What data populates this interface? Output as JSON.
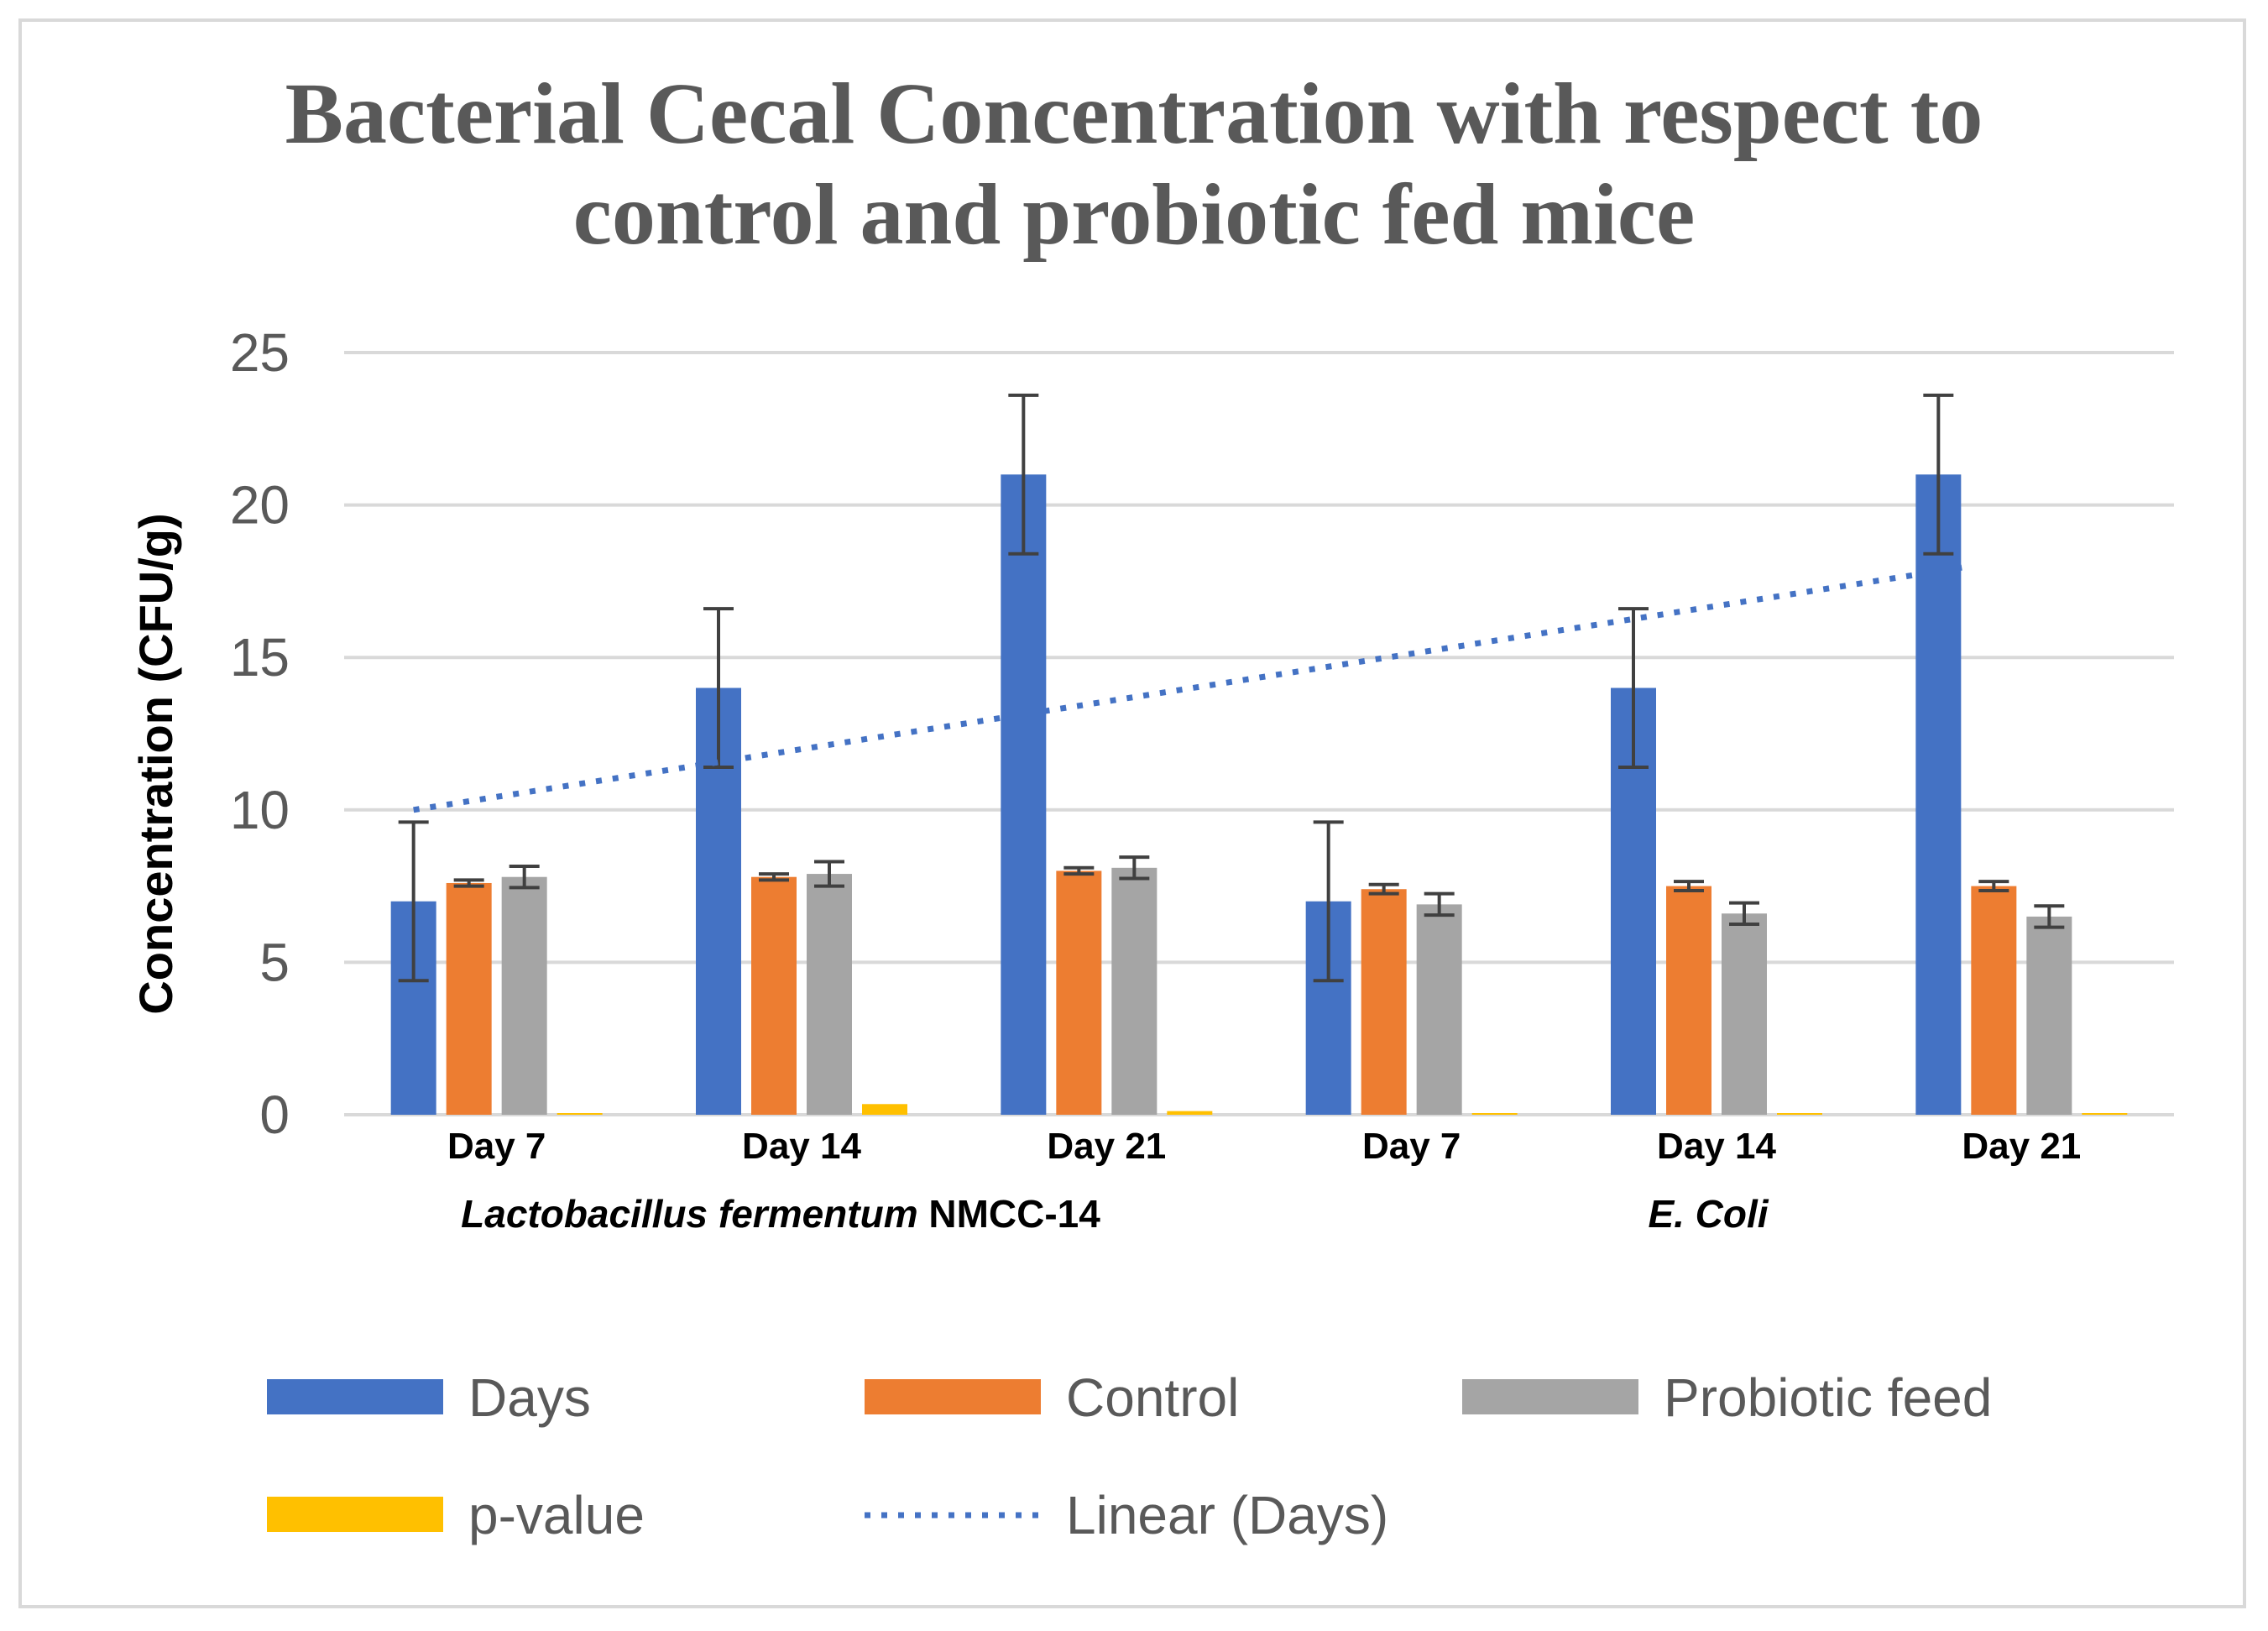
{
  "chart_data": {
    "type": "bar",
    "title_lines": [
      "Bacterial Cecal Concentration  with respect to",
      "control and probiotic fed mice"
    ],
    "ylabel": "Concentration (CFU/g)",
    "xlabel": "",
    "ylim": [
      0,
      25
    ],
    "yticks": [
      "0",
      "5",
      "10",
      "15",
      "20",
      "25"
    ],
    "categories": [
      "Day 7",
      "Day 14",
      "Day 21",
      "Day 7",
      "Day 14",
      "Day 21"
    ],
    "groups": [
      {
        "prefix_italic": "Lactobacillus fermentum",
        "suffix": " NMCC-14"
      },
      {
        "prefix_italic": "E. Coli",
        "suffix": ""
      }
    ],
    "series": [
      {
        "name": "Days",
        "color": "#4472c4",
        "values": [
          7,
          14,
          21,
          7,
          14,
          21
        ],
        "errors": [
          2.6,
          2.6,
          2.6,
          2.6,
          2.6,
          2.6
        ]
      },
      {
        "name": "Control",
        "color": "#ed7d31",
        "values": [
          7.6,
          7.8,
          8.0,
          7.4,
          7.5,
          7.5
        ],
        "errors": [
          0.1,
          0.1,
          0.1,
          0.15,
          0.15,
          0.15
        ]
      },
      {
        "name": "Probiotic feed",
        "color": "#a5a5a5",
        "values": [
          7.8,
          7.9,
          8.1,
          6.9,
          6.6,
          6.5
        ],
        "errors": [
          0.35,
          0.4,
          0.35,
          0.35,
          0.35,
          0.35
        ]
      },
      {
        "name": "p-value",
        "color": "#ffc000",
        "values": [
          0.05,
          0.35,
          0.12,
          0.05,
          0.05,
          0.05
        ],
        "errors": [
          0,
          0,
          0,
          0,
          0,
          0
        ]
      }
    ],
    "trendline": {
      "name": "Linear (Days)",
      "color": "#4472c4",
      "start": 10.0,
      "end": 18.0,
      "style": "dotted"
    },
    "legend": [
      {
        "label": "Days",
        "color": "#4472c4",
        "kind": "bar"
      },
      {
        "label": "Control",
        "color": "#ed7d31",
        "kind": "bar"
      },
      {
        "label": "Probiotic feed",
        "color": "#a5a5a5",
        "kind": "bar"
      },
      {
        "label": "p-value",
        "color": "#ffc000",
        "kind": "bar"
      },
      {
        "label": "Linear (Days)",
        "color": "#4472c4",
        "kind": "dotted-line"
      }
    ],
    "legend_position": "bottom",
    "grid": true
  }
}
